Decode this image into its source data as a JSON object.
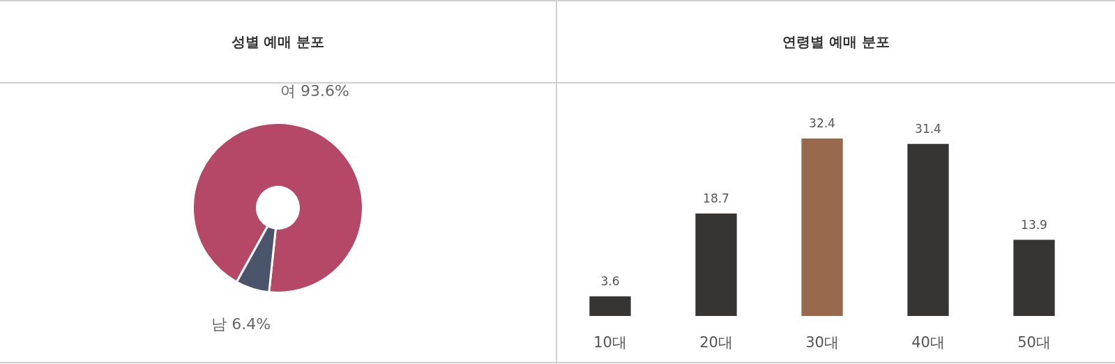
{
  "chart_data": [
    {
      "type": "donut",
      "title": "성별 예매 분포",
      "categories": [
        "여",
        "남"
      ],
      "values": [
        93.6,
        6.4
      ],
      "colors": [
        "#b54866",
        "#4a556c"
      ],
      "value_labels": [
        "93.6%",
        "6.4%"
      ]
    },
    {
      "type": "bar",
      "title": "연령별 예매 분포",
      "categories": [
        "10대",
        "20대",
        "30대",
        "40대",
        "50대"
      ],
      "values": [
        3.6,
        18.7,
        32.4,
        31.4,
        13.9
      ],
      "colors": [
        "#373533",
        "#373533",
        "#98694d",
        "#373533",
        "#373533"
      ],
      "data_labels": true
    }
  ]
}
